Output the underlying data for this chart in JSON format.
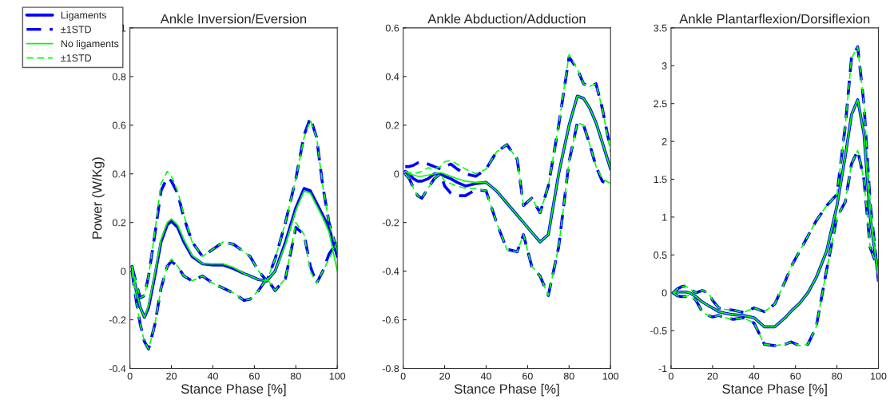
{
  "chart_data": [
    {
      "type": "line",
      "title": "Ankle Inversion/Eversion",
      "xlabel": "Stance Phase [%]",
      "ylabel": "Power (W/Kg)",
      "xlim": [
        0,
        100
      ],
      "xticks": [
        0,
        20,
        40,
        60,
        80,
        100
      ],
      "ylim": [
        -0.4,
        1
      ],
      "yticks": [
        -0.4,
        -0.2,
        0,
        0.2,
        0.4,
        0.6,
        0.8,
        1
      ],
      "legend": "left",
      "grid": false,
      "x": [
        1,
        3,
        5,
        7,
        9,
        12,
        15,
        18,
        20,
        23,
        26,
        30,
        35,
        40,
        45,
        50,
        55,
        58,
        62,
        66,
        70,
        75,
        80,
        84,
        87,
        90,
        93,
        96,
        100
      ],
      "series": [
        {
          "name": "Ligaments",
          "color": "#0000ff",
          "line_style": "solid",
          "values": [
            0.02,
            -0.08,
            -0.15,
            -0.19,
            -0.15,
            -0.02,
            0.12,
            0.19,
            0.205,
            0.18,
            0.12,
            0.06,
            0.03,
            0.025,
            0.025,
            0.01,
            -0.01,
            -0.02,
            -0.035,
            -0.04,
            0.0,
            0.12,
            0.26,
            0.34,
            0.33,
            0.28,
            0.23,
            0.18,
            0.06
          ]
        },
        {
          "name": "±1STD",
          "color": "#0000ff",
          "line_style": "dashed",
          "values": [
            0.02,
            -0.05,
            -0.11,
            -0.1,
            -0.02,
            0.15,
            0.33,
            0.385,
            0.37,
            0.32,
            0.22,
            0.12,
            0.06,
            0.09,
            0.12,
            0.11,
            0.08,
            0.06,
            0.0,
            -0.04,
            0.05,
            0.2,
            0.38,
            0.56,
            0.63,
            0.55,
            0.35,
            0.2,
            0.08
          ]
        },
        {
          "color": "#0000ff",
          "line_style": "dashed",
          "values": [
            0.0,
            -0.12,
            -0.22,
            -0.29,
            -0.32,
            -0.22,
            -0.07,
            0.02,
            0.04,
            0.02,
            -0.02,
            -0.04,
            -0.02,
            -0.05,
            -0.07,
            -0.09,
            -0.12,
            -0.115,
            -0.08,
            -0.03,
            -0.08,
            -0.03,
            0.18,
            0.15,
            0.02,
            -0.05,
            0.0,
            0.07,
            0.12
          ]
        },
        {
          "name": "No ligaments",
          "color": "#00ff00",
          "line_style": "solid",
          "values": [
            0.02,
            -0.08,
            -0.15,
            -0.19,
            -0.14,
            -0.01,
            0.13,
            0.2,
            0.215,
            0.19,
            0.13,
            0.065,
            0.03,
            0.03,
            0.03,
            0.015,
            -0.01,
            -0.02,
            -0.035,
            -0.04,
            0.0,
            0.11,
            0.25,
            0.33,
            0.32,
            0.27,
            0.22,
            0.16,
            0.0
          ]
        },
        {
          "name": "±1STD",
          "color": "#00ff00",
          "line_style": "dashed",
          "values": [
            0.02,
            -0.05,
            -0.11,
            -0.1,
            -0.02,
            0.16,
            0.36,
            0.41,
            0.39,
            0.33,
            0.23,
            0.12,
            0.06,
            0.09,
            0.12,
            0.11,
            0.08,
            0.06,
            0.0,
            -0.04,
            0.05,
            0.2,
            0.38,
            0.55,
            0.62,
            0.55,
            0.35,
            0.2,
            0.08
          ]
        },
        {
          "color": "#00ff00",
          "line_style": "dashed",
          "values": [
            0.0,
            -0.12,
            -0.22,
            -0.29,
            -0.32,
            -0.22,
            -0.07,
            0.02,
            0.05,
            0.02,
            -0.02,
            -0.04,
            -0.02,
            -0.05,
            -0.07,
            -0.09,
            -0.12,
            -0.115,
            -0.08,
            -0.03,
            -0.08,
            -0.03,
            0.2,
            0.15,
            0.0,
            -0.05,
            0.0,
            0.05,
            0.12
          ]
        }
      ]
    },
    {
      "type": "line",
      "title": "Ankle Abduction/Adduction",
      "xlabel": "Stance Phase [%]",
      "xlim": [
        0,
        100
      ],
      "xticks": [
        0,
        20,
        40,
        60,
        80,
        100
      ],
      "ylim": [
        -0.8,
        0.6
      ],
      "yticks": [
        -0.8,
        -0.6,
        -0.4,
        -0.2,
        0,
        0.2,
        0.4,
        0.6
      ],
      "grid": false,
      "x": [
        1,
        3,
        5,
        7,
        9,
        12,
        15,
        18,
        20,
        23,
        26,
        30,
        35,
        40,
        45,
        50,
        55,
        58,
        62,
        66,
        70,
        75,
        80,
        84,
        87,
        90,
        93,
        96,
        100
      ],
      "series": [
        {
          "color": "#0000ff",
          "line_style": "solid",
          "values": [
            0.01,
            0.0,
            -0.02,
            -0.03,
            -0.03,
            -0.02,
            0.0,
            0.0,
            -0.01,
            -0.02,
            -0.035,
            -0.05,
            -0.04,
            -0.035,
            -0.07,
            -0.12,
            -0.17,
            -0.2,
            -0.24,
            -0.28,
            -0.25,
            0.0,
            0.2,
            0.32,
            0.31,
            0.27,
            0.21,
            0.13,
            0.02
          ]
        },
        {
          "color": "#0000ff",
          "line_style": "dashed",
          "values": [
            0.03,
            0.03,
            0.035,
            0.045,
            0.05,
            0.04,
            0.03,
            0.02,
            0.03,
            0.04,
            0.02,
            0.0,
            -0.01,
            0.02,
            0.09,
            0.12,
            0.06,
            -0.13,
            -0.1,
            -0.16,
            -0.05,
            0.2,
            0.48,
            0.43,
            0.37,
            0.36,
            0.37,
            0.27,
            0.1
          ]
        },
        {
          "color": "#0000ff",
          "line_style": "dashed",
          "values": [
            0.0,
            -0.02,
            -0.06,
            -0.09,
            -0.1,
            -0.06,
            -0.02,
            0.0,
            -0.05,
            -0.08,
            -0.09,
            -0.09,
            -0.065,
            -0.07,
            -0.2,
            -0.31,
            -0.32,
            -0.25,
            -0.38,
            -0.42,
            -0.5,
            -0.3,
            0.05,
            0.21,
            0.2,
            0.12,
            0.03,
            -0.03,
            -0.05
          ]
        },
        {
          "color": "#00ff00",
          "line_style": "solid",
          "values": [
            0.01,
            0.0,
            -0.005,
            -0.01,
            -0.01,
            -0.005,
            0.0,
            0.005,
            0.0,
            -0.01,
            -0.02,
            -0.03,
            -0.035,
            -0.035,
            -0.07,
            -0.12,
            -0.17,
            -0.2,
            -0.24,
            -0.28,
            -0.25,
            0.0,
            0.2,
            0.32,
            0.31,
            0.27,
            0.21,
            0.13,
            0.02
          ]
        },
        {
          "color": "#00ff00",
          "line_style": "dashed",
          "values": [
            0.01,
            0.005,
            0.0,
            0.005,
            0.01,
            0.025,
            0.02,
            0.03,
            0.05,
            0.055,
            0.04,
            0.02,
            0.0,
            0.02,
            0.09,
            0.12,
            0.06,
            -0.13,
            -0.1,
            -0.16,
            -0.05,
            0.2,
            0.49,
            0.43,
            0.37,
            0.36,
            0.37,
            0.27,
            0.09
          ]
        },
        {
          "color": "#00ff00",
          "line_style": "dashed",
          "values": [
            0.0,
            -0.02,
            -0.06,
            -0.09,
            -0.1,
            -0.06,
            -0.02,
            0.0,
            -0.03,
            -0.04,
            -0.05,
            -0.06,
            -0.06,
            -0.07,
            -0.2,
            -0.31,
            -0.32,
            -0.25,
            -0.38,
            -0.42,
            -0.5,
            -0.3,
            0.05,
            0.21,
            0.2,
            0.12,
            0.03,
            -0.02,
            -0.04
          ]
        }
      ]
    },
    {
      "type": "line",
      "title": "Ankle Plantarflexion/Dorsiflexion",
      "xlabel": "Stance Phase [%]",
      "xlim": [
        0,
        100
      ],
      "xticks": [
        0,
        20,
        40,
        60,
        80,
        100
      ],
      "ylim": [
        -1,
        3.5
      ],
      "yticks": [
        -1,
        -0.5,
        0,
        0.5,
        1,
        1.5,
        2,
        2.5,
        3,
        3.5
      ],
      "grid": false,
      "x": [
        1,
        3,
        5,
        7,
        9,
        12,
        15,
        18,
        20,
        23,
        26,
        30,
        35,
        40,
        45,
        50,
        55,
        58,
        62,
        66,
        70,
        75,
        80,
        84,
        87,
        90,
        93,
        96,
        100
      ],
      "series": [
        {
          "color": "#0000ff",
          "line_style": "solid",
          "values": [
            0.0,
            0.01,
            0.01,
            0.01,
            0.0,
            -0.05,
            -0.12,
            -0.17,
            -0.2,
            -0.25,
            -0.27,
            -0.29,
            -0.3,
            -0.33,
            -0.45,
            -0.45,
            -0.33,
            -0.24,
            -0.14,
            0.0,
            0.2,
            0.55,
            1.15,
            1.8,
            2.35,
            2.55,
            2.1,
            1.0,
            0.2
          ]
        },
        {
          "color": "#0000ff",
          "line_style": "dashed",
          "values": [
            0.0,
            0.05,
            0.08,
            0.09,
            0.05,
            0.0,
            0.03,
            0.0,
            -0.1,
            -0.2,
            -0.22,
            -0.23,
            -0.26,
            -0.2,
            -0.25,
            -0.15,
            0.15,
            0.35,
            0.55,
            0.75,
            0.95,
            1.15,
            1.3,
            2.2,
            3.1,
            3.25,
            2.5,
            1.2,
            0.15
          ]
        },
        {
          "color": "#0000ff",
          "line_style": "dashed",
          "values": [
            0.0,
            -0.04,
            -0.05,
            -0.05,
            -0.03,
            -0.1,
            -0.25,
            -0.3,
            -0.32,
            -0.3,
            -0.33,
            -0.35,
            -0.33,
            -0.4,
            -0.68,
            -0.7,
            -0.68,
            -0.65,
            -0.7,
            -0.68,
            -0.45,
            0.3,
            1.0,
            1.2,
            1.7,
            1.88,
            1.5,
            0.6,
            0.3
          ]
        },
        {
          "color": "#00ff00",
          "line_style": "solid",
          "values": [
            0.0,
            0.01,
            0.01,
            0.01,
            0.0,
            -0.05,
            -0.12,
            -0.17,
            -0.2,
            -0.25,
            -0.27,
            -0.29,
            -0.3,
            -0.33,
            -0.45,
            -0.45,
            -0.33,
            -0.24,
            -0.14,
            0.0,
            0.2,
            0.55,
            1.15,
            1.8,
            2.35,
            2.55,
            2.1,
            1.0,
            0.2
          ]
        },
        {
          "color": "#00ff00",
          "line_style": "dashed",
          "values": [
            0.0,
            0.05,
            0.08,
            0.09,
            0.05,
            0.0,
            0.03,
            0.0,
            -0.1,
            -0.2,
            -0.22,
            -0.23,
            -0.26,
            -0.2,
            -0.25,
            -0.15,
            0.15,
            0.35,
            0.55,
            0.75,
            0.95,
            1.15,
            1.3,
            2.2,
            3.1,
            3.25,
            2.5,
            1.2,
            0.15
          ]
        },
        {
          "color": "#00ff00",
          "line_style": "dashed",
          "values": [
            0.0,
            -0.04,
            -0.05,
            -0.05,
            -0.03,
            -0.1,
            -0.25,
            -0.3,
            -0.32,
            -0.3,
            -0.33,
            -0.35,
            -0.33,
            -0.4,
            -0.68,
            -0.7,
            -0.68,
            -0.65,
            -0.7,
            -0.68,
            -0.45,
            0.3,
            1.0,
            1.2,
            1.7,
            1.88,
            1.5,
            0.6,
            0.3
          ]
        }
      ]
    }
  ]
}
